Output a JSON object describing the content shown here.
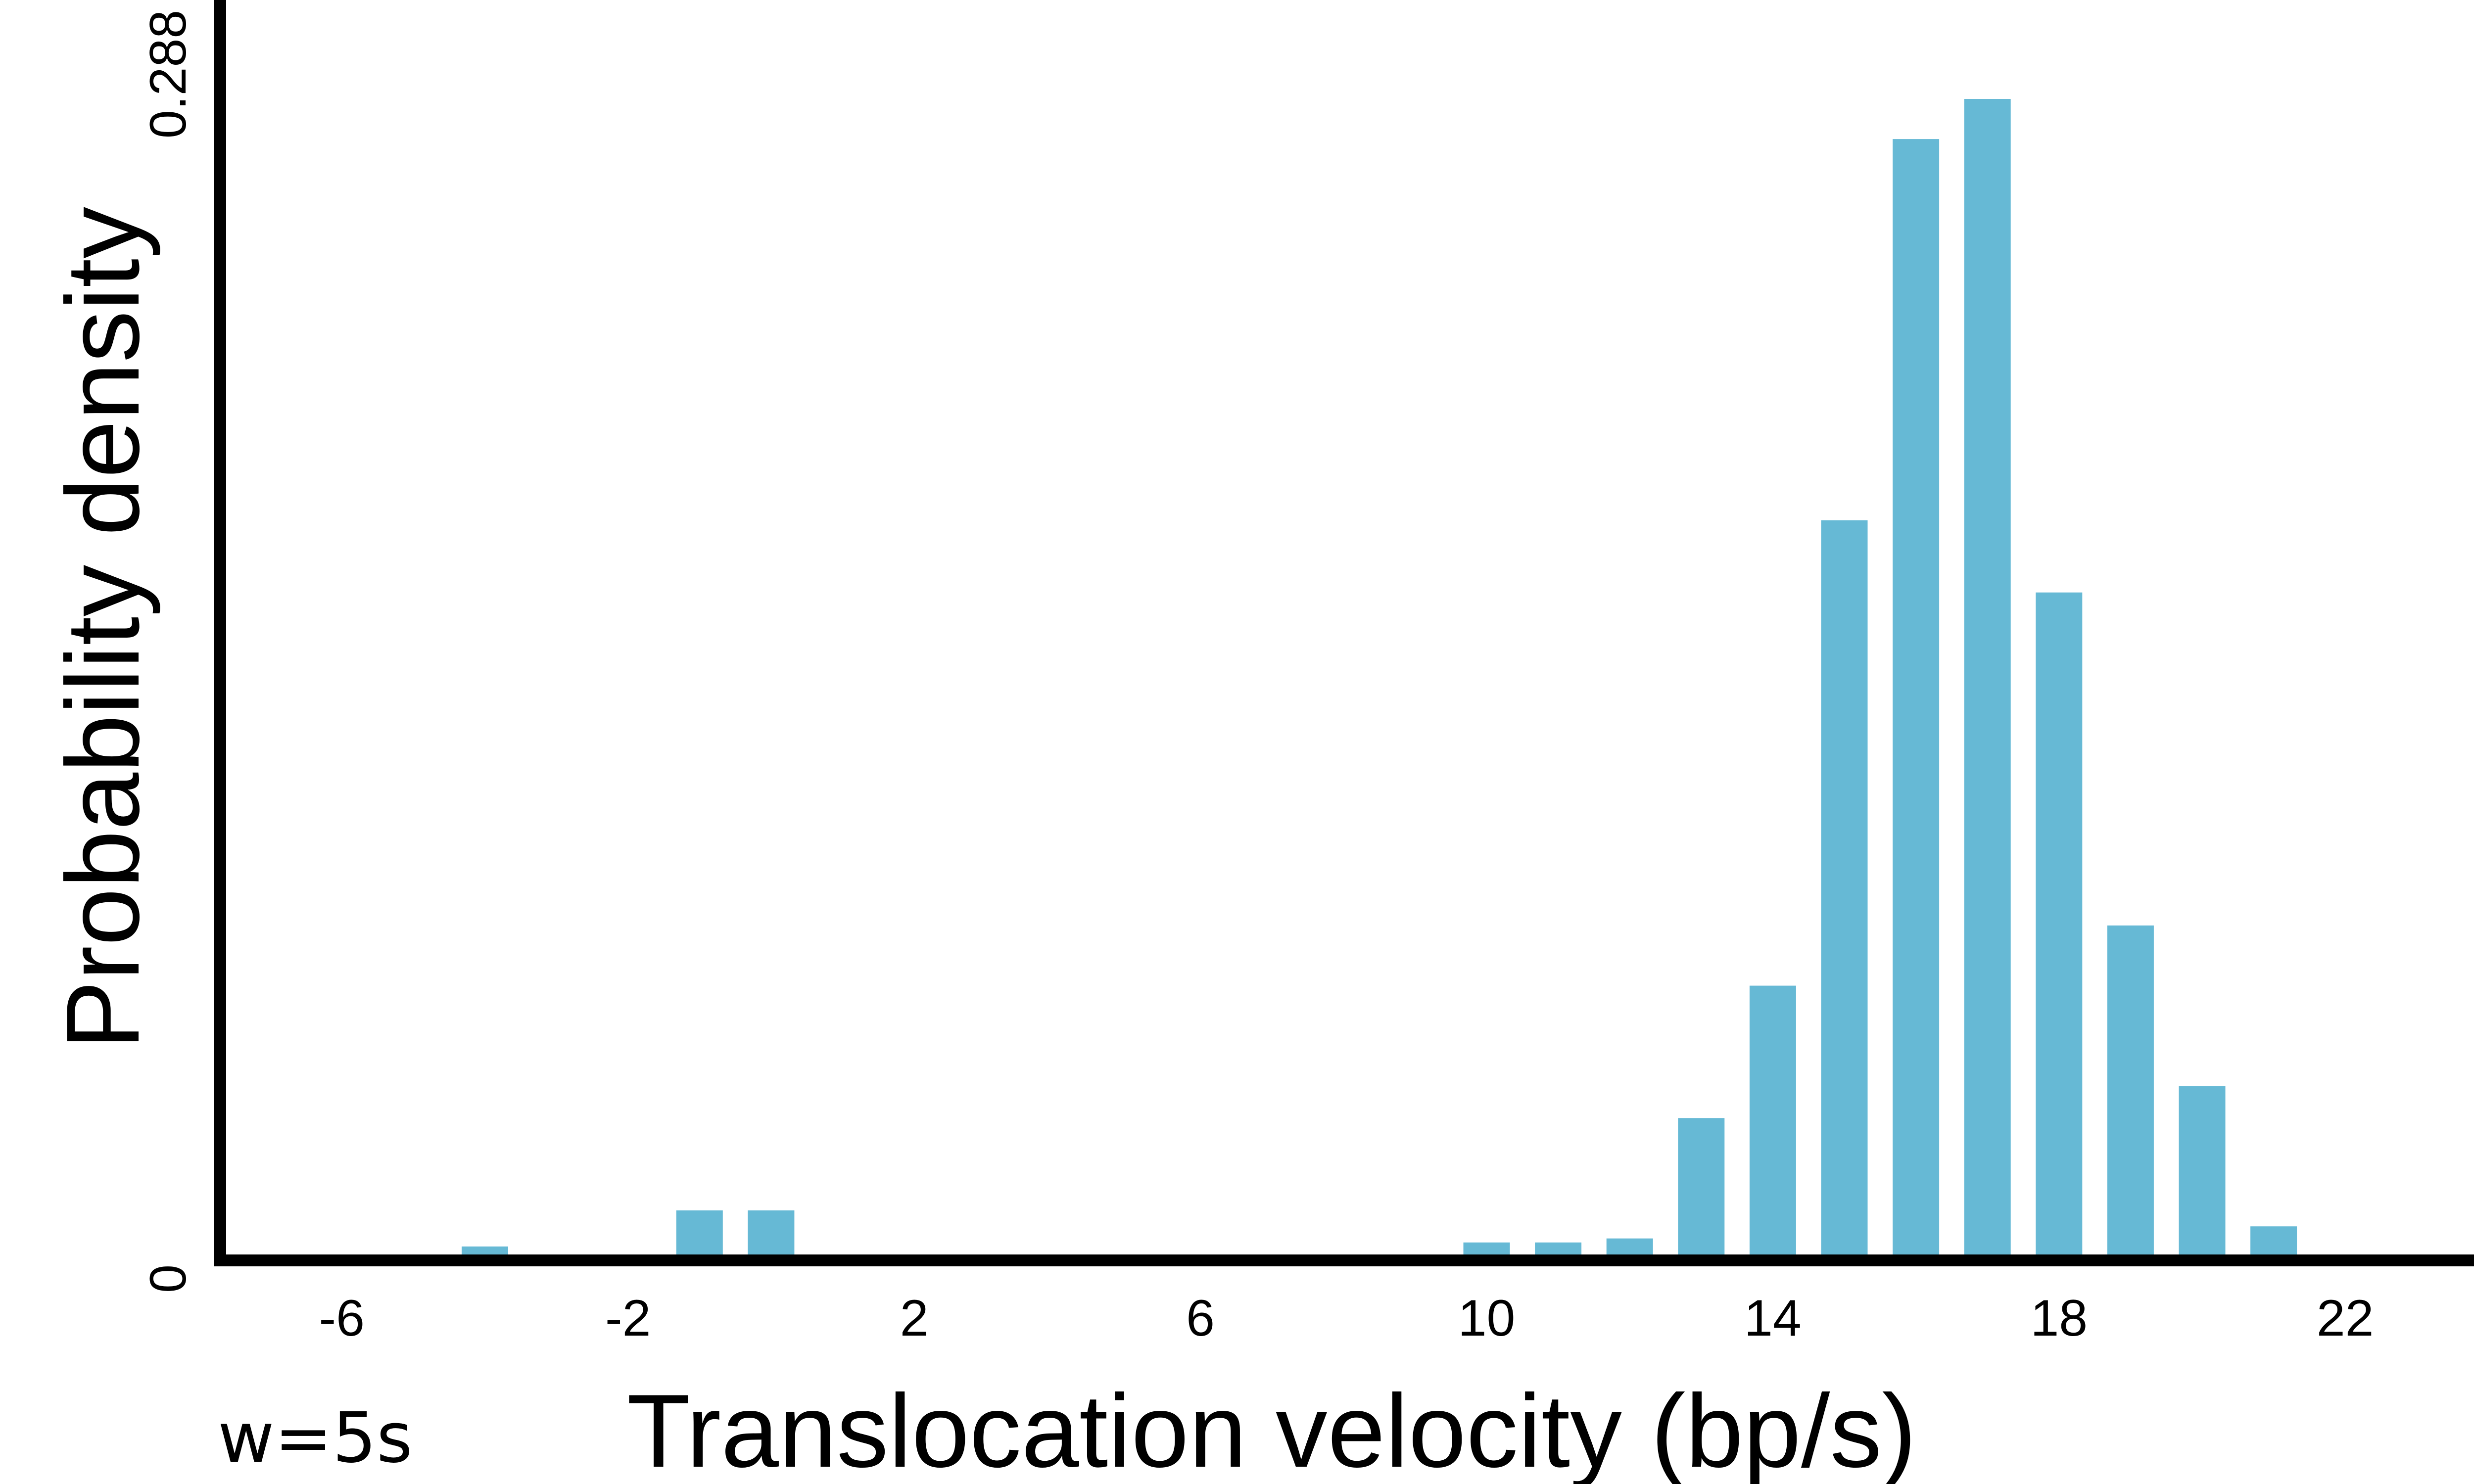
{
  "chart_data": {
    "type": "bar",
    "xlabel": "Translocation velocity (bp/s)",
    "ylabel": "Probability density",
    "annotation": "w=5s",
    "bar_color": "#66b9d5",
    "axis_color": "#000000",
    "grid": false,
    "xlim": [
      -7.7,
      23.8
    ],
    "ylim": [
      0,
      0.288
    ],
    "x_ticks": [
      {
        "value": -6,
        "label": "-6"
      },
      {
        "value": -2,
        "label": "-2"
      },
      {
        "value": 2,
        "label": "2"
      },
      {
        "value": 6,
        "label": "6"
      },
      {
        "value": 10,
        "label": "10"
      },
      {
        "value": 14,
        "label": "14"
      },
      {
        "value": 18,
        "label": "18"
      },
      {
        "value": 22,
        "label": "22"
      }
    ],
    "y_ticks": [
      {
        "value": 0,
        "label": "0"
      },
      {
        "value": 0.288,
        "label": "0.288"
      }
    ],
    "bar_width": 0.65,
    "x": [
      -4,
      -1,
      0,
      10,
      11,
      12,
      13,
      14,
      15,
      16,
      17,
      18,
      19,
      20,
      21
    ],
    "values": [
      0.002,
      0.011,
      0.011,
      0.003,
      0.003,
      0.004,
      0.034,
      0.067,
      0.183,
      0.278,
      0.288,
      0.165,
      0.082,
      0.042,
      0.007
    ]
  }
}
